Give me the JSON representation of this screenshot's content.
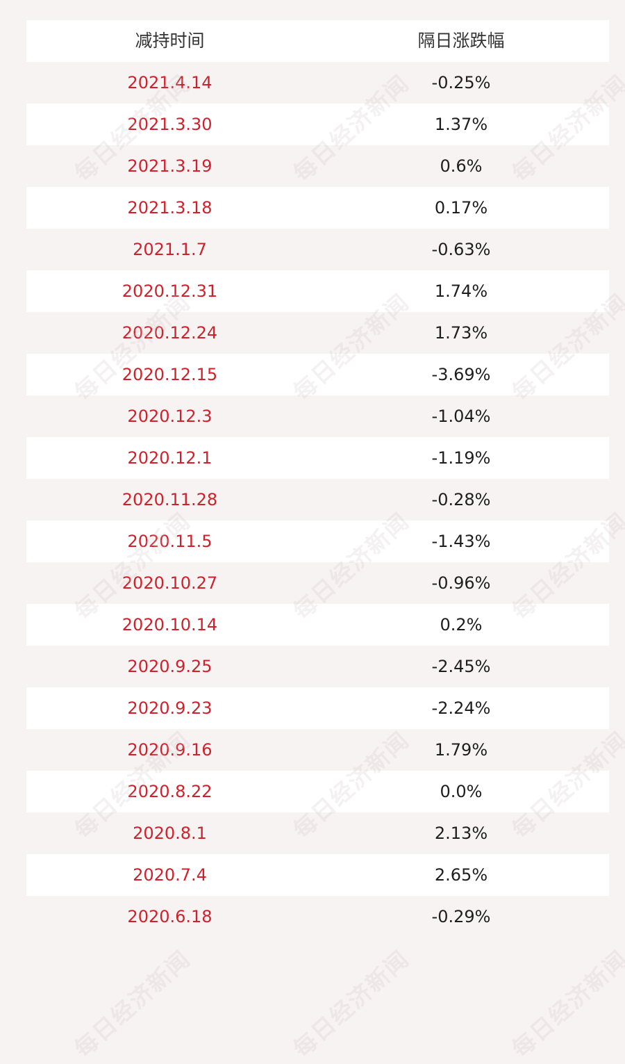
{
  "table": {
    "headers": [
      "减持时间",
      "隔日涨跌幅"
    ],
    "rows": [
      [
        "2021.4.14",
        "-0.25%"
      ],
      [
        "2021.3.30",
        "1.37%"
      ],
      [
        "2021.3.19",
        "0.6%"
      ],
      [
        "2021.3.18",
        "0.17%"
      ],
      [
        "2021.1.7",
        "-0.63%"
      ],
      [
        "2020.12.31",
        "1.74%"
      ],
      [
        "2020.12.24",
        "1.73%"
      ],
      [
        "2020.12.15",
        "-3.69%"
      ],
      [
        "2020.12.3",
        "-1.04%"
      ],
      [
        "2020.12.1",
        "-1.19%"
      ],
      [
        "2020.11.28",
        "-0.28%"
      ],
      [
        "2020.11.5",
        "-1.43%"
      ],
      [
        "2020.10.27",
        "-0.96%"
      ],
      [
        "2020.10.14",
        "0.2%"
      ],
      [
        "2020.9.25",
        "-2.45%"
      ],
      [
        "2020.9.23",
        "-2.24%"
      ],
      [
        "2020.9.16",
        "1.79%"
      ],
      [
        "2020.8.22",
        "0.0%"
      ],
      [
        "2020.8.1",
        "2.13%"
      ],
      [
        "2020.7.4",
        "2.65%"
      ],
      [
        "2020.6.18",
        "-0.29%"
      ]
    ]
  },
  "watermark": "每日经济新闻",
  "colors": {
    "background": "#f8f3f3",
    "row_white": "#ffffff",
    "date_text": "#d0212b",
    "value_text": "#1e1e1e",
    "header_text": "#333333"
  }
}
